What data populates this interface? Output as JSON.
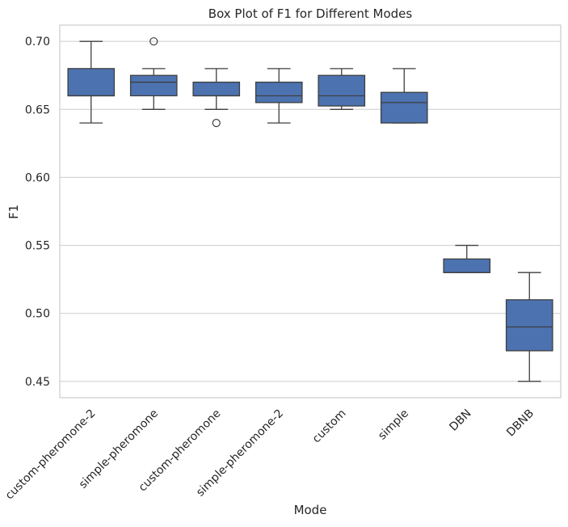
{
  "chart_data": {
    "type": "box",
    "title": "Box Plot of F1 for Different Modes",
    "xlabel": "Mode",
    "ylabel": "F1",
    "ylim": [
      0.438,
      0.712
    ],
    "yticks": [
      0.45,
      0.5,
      0.55,
      0.6,
      0.65,
      0.7
    ],
    "ytick_labels": [
      "0.45",
      "0.50",
      "0.55",
      "0.60",
      "0.65",
      "0.70"
    ],
    "grid": "horizontal",
    "box_color": "#4c72b0",
    "line_color": "#3f3f3f",
    "categories": [
      "custom-pheromone-2",
      "simple-pheromone",
      "custom-pheromone",
      "simple-pheromone-2",
      "custom",
      "simple",
      "DBN",
      "DBNB"
    ],
    "boxes": [
      {
        "whisker_low": 0.64,
        "q1": 0.66,
        "median": 0.66,
        "q3": 0.68,
        "whisker_high": 0.7,
        "outliers": []
      },
      {
        "whisker_low": 0.65,
        "q1": 0.66,
        "median": 0.67,
        "q3": 0.675,
        "whisker_high": 0.68,
        "outliers": [
          0.7
        ]
      },
      {
        "whisker_low": 0.65,
        "q1": 0.66,
        "median": 0.66,
        "q3": 0.67,
        "whisker_high": 0.68,
        "outliers": [
          0.64
        ]
      },
      {
        "whisker_low": 0.64,
        "q1": 0.655,
        "median": 0.66,
        "q3": 0.67,
        "whisker_high": 0.68,
        "outliers": []
      },
      {
        "whisker_low": 0.65,
        "q1": 0.6525,
        "median": 0.66,
        "q3": 0.675,
        "whisker_high": 0.68,
        "outliers": []
      },
      {
        "whisker_low": 0.64,
        "q1": 0.64,
        "median": 0.655,
        "q3": 0.6625,
        "whisker_high": 0.68,
        "outliers": []
      },
      {
        "whisker_low": 0.53,
        "q1": 0.53,
        "median": 0.53,
        "q3": 0.54,
        "whisker_high": 0.55,
        "outliers": []
      },
      {
        "whisker_low": 0.45,
        "q1": 0.4725,
        "median": 0.49,
        "q3": 0.51,
        "whisker_high": 0.53,
        "outliers": []
      }
    ]
  }
}
